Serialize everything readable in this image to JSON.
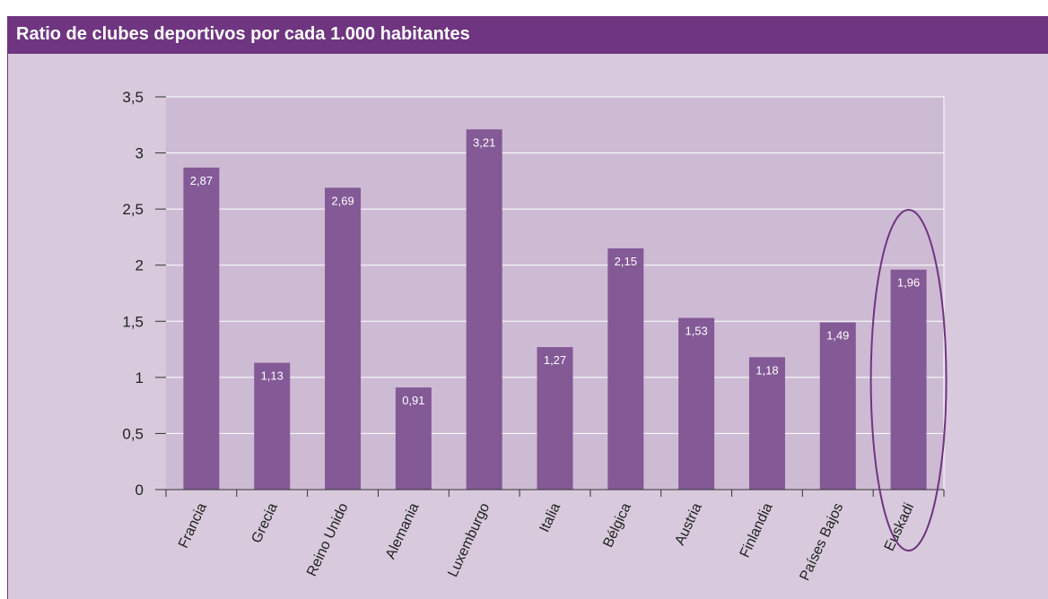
{
  "header": {
    "title": "Ratio de clubes deportivos por cada 1.000 habitantes"
  },
  "colors": {
    "header_bg": "#6f3580",
    "panel_bg": "#d8cadc",
    "plot_bg": "#cdbbd4",
    "bar": "#835996",
    "highlight_ring": "#6f3580",
    "gridline": "#ffffff"
  },
  "chart_data": {
    "type": "bar",
    "title": "Ratio de clubes deportivos por cada 1.000 habitantes",
    "categories": [
      "Francia",
      "Grecia",
      "Reino Unido",
      "Alemania",
      "Luxemburgo",
      "Italia",
      "Bélgica",
      "Austria",
      "Finlandia",
      "Países Bajos",
      "Euskadi"
    ],
    "values": [
      2.87,
      1.13,
      2.69,
      0.91,
      3.21,
      1.27,
      2.15,
      1.53,
      1.18,
      1.49,
      1.96
    ],
    "value_labels": [
      "2,87",
      "1,13",
      "2,69",
      "0,91",
      "3,21",
      "1,27",
      "2,15",
      "1,53",
      "1,18",
      "1,49",
      "1,96"
    ],
    "y_ticks": [
      0,
      0.5,
      1,
      1.5,
      2,
      2.5,
      3,
      3.5
    ],
    "y_tick_labels": [
      "0",
      "0,5",
      "1",
      "1,5",
      "2",
      "2,5",
      "3",
      "3,5"
    ],
    "ylim": [
      0,
      3.5
    ],
    "grid": true,
    "highlighted_category": "Euskadi",
    "xlabel": "",
    "ylabel": ""
  }
}
